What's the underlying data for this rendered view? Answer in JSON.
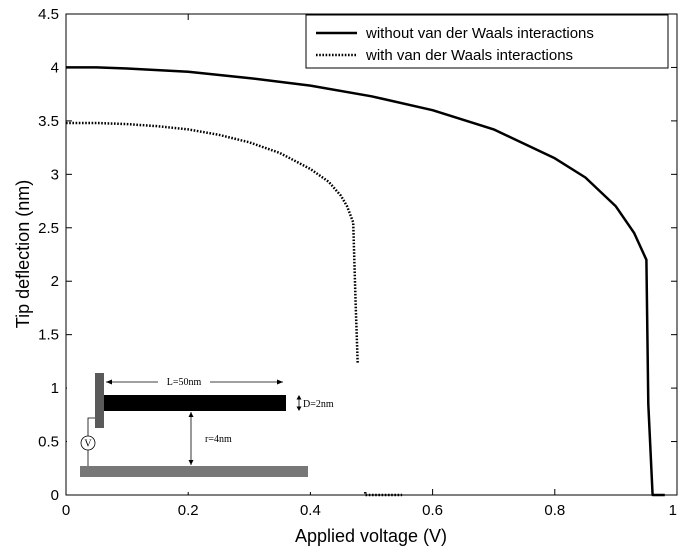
{
  "chart_data": {
    "type": "line",
    "xlabel": "Applied voltage (V)",
    "ylabel": "Tip deflection (nm)",
    "xlim": [
      0,
      1
    ],
    "ylim": [
      0,
      4.5
    ],
    "x_ticks": [
      "0",
      "0.2",
      "0.4",
      "0.6",
      "0.8",
      "1"
    ],
    "y_ticks": [
      "0",
      "0.5",
      "1",
      "1.5",
      "2",
      "2.5",
      "3",
      "3.5",
      "4",
      "4.5"
    ],
    "grid": false,
    "legend_position": "top-right",
    "series": [
      {
        "name": "without van der Waals interactions",
        "style": "solid",
        "color": "#000000",
        "x": [
          0,
          0.05,
          0.1,
          0.2,
          0.3,
          0.4,
          0.5,
          0.6,
          0.7,
          0.8,
          0.85,
          0.9,
          0.93,
          0.95,
          0.953,
          0.96,
          0.98
        ],
        "y": [
          4.0,
          4.0,
          3.99,
          3.96,
          3.9,
          3.83,
          3.73,
          3.6,
          3.42,
          3.15,
          2.97,
          2.7,
          2.45,
          2.2,
          0.85,
          0,
          0
        ]
      },
      {
        "name": "with van der Waals interactions",
        "style": "dotted",
        "color": "#000000",
        "x": [
          0,
          0.05,
          0.1,
          0.15,
          0.2,
          0.25,
          0.3,
          0.35,
          0.4,
          0.43,
          0.45,
          0.46,
          0.47,
          0.474,
          0.48,
          0.49,
          0.55
        ],
        "y": [
          3.48,
          3.48,
          3.47,
          3.45,
          3.42,
          3.37,
          3.3,
          3.2,
          3.05,
          2.93,
          2.8,
          2.7,
          2.55,
          1.8,
          0.8,
          0,
          0
        ]
      }
    ],
    "inset": {
      "labels": [
        "L=50nm",
        "D=2nm",
        "r=4nm",
        "V"
      ]
    }
  }
}
